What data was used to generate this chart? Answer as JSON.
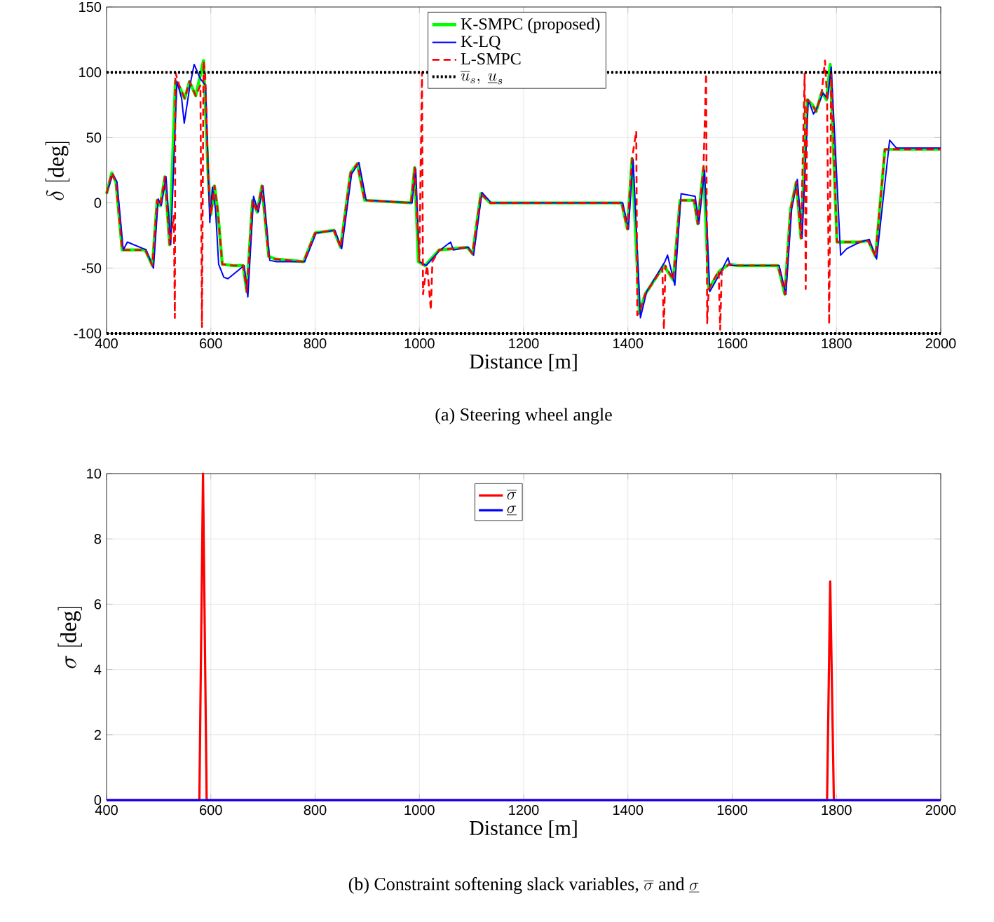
{
  "chart_data": [
    {
      "type": "line",
      "ylabel": "\\delta\\ [\\mathrm{deg}]",
      "xlabel": "Distance [m]",
      "xlim": [
        400,
        2000
      ],
      "xticks": [
        400,
        600,
        800,
        1000,
        1200,
        1400,
        1600,
        1800,
        2000
      ],
      "ylim": [
        -100,
        150
      ],
      "yticks": [
        -100,
        -50,
        0,
        50,
        100,
        150
      ],
      "grid": true,
      "legend": "top",
      "marker": "none",
      "series": [
        {
          "name": "K-SMPC (proposed)",
          "color": "#00ff00",
          "line_style": "solid",
          "x": [
            400,
            410,
            418,
            430,
            438,
            474,
            488,
            497,
            503,
            512,
            521,
            532,
            541,
            550,
            559,
            571,
            586,
            595,
            600,
            607,
            613,
            622,
            644,
            662,
            669,
            680,
            689,
            698,
            711,
            724,
            778,
            800,
            836,
            849,
            868,
            881,
            895,
            984,
            991,
            998,
            1011,
            1038,
            1092,
            1102,
            1118,
            1136,
            1388,
            1399,
            1408,
            1422,
            1433,
            1469,
            1487,
            1500,
            1527,
            1534,
            1545,
            1555,
            1576,
            1594,
            1612,
            1688,
            1701,
            1712,
            1723,
            1732,
            1744,
            1754,
            1761,
            1772,
            1781,
            1788,
            1801,
            1843,
            1861,
            1875,
            1893,
            2000
          ],
          "values": [
            7,
            23,
            16,
            -36,
            -36,
            -36,
            -48,
            2,
            -2,
            20,
            -32,
            93,
            88,
            80,
            93,
            82,
            109,
            20,
            -9,
            13,
            -5,
            -47,
            -48,
            -48,
            -68,
            2,
            -7,
            13,
            -41,
            -43,
            -45,
            -23,
            -21,
            -34,
            23,
            30,
            2,
            0,
            27,
            -45,
            -48,
            -36,
            -34,
            -39,
            7,
            0,
            0,
            -20,
            34,
            -84,
            -70,
            -48,
            -59,
            2,
            2,
            -16,
            27,
            -66,
            -52,
            -47,
            -48,
            -48,
            -70,
            -5,
            16,
            -27,
            79,
            75,
            70,
            85,
            79,
            106,
            -30,
            -30,
            -29,
            -41,
            41,
            41
          ]
        },
        {
          "name": "K-LQ",
          "color": "#0000ff",
          "line_style": "solid",
          "x": [
            400,
            412,
            420,
            432,
            440,
            476,
            490,
            499,
            505,
            514,
            523,
            535,
            544,
            549,
            560,
            568,
            580,
            590,
            598,
            603,
            609,
            615,
            625,
            633,
            664,
            671,
            682,
            691,
            700,
            713,
            726,
            780,
            802,
            838,
            851,
            870,
            884,
            898,
            986,
            993,
            1000,
            1013,
            1040,
            1060,
            1065,
            1094,
            1104,
            1120,
            1138,
            1390,
            1401,
            1410,
            1424,
            1436,
            1471,
            1476,
            1490,
            1502,
            1529,
            1536,
            1547,
            1557,
            1578,
            1592,
            1596,
            1614,
            1690,
            1703,
            1714,
            1725,
            1734,
            1746,
            1756,
            1763,
            1774,
            1783,
            1790,
            1808,
            1820,
            1845,
            1863,
            1877,
            1902,
            1915,
            2000
          ],
          "values": [
            7,
            22,
            16,
            -36,
            -30,
            -36,
            -50,
            3,
            -2,
            20,
            -32,
            93,
            80,
            61,
            90,
            106,
            95,
            90,
            -15,
            12,
            -5,
            -47,
            -57,
            -58,
            -48,
            -72,
            5,
            -7,
            13,
            -44,
            -45,
            -45,
            -23,
            -21,
            -35,
            22,
            31,
            2,
            0,
            26,
            -45,
            -48,
            -36,
            -30,
            -36,
            -34,
            -40,
            8,
            0,
            0,
            -20,
            33,
            -88,
            -68,
            -45,
            -40,
            -63,
            7,
            5,
            -16,
            25,
            -68,
            -53,
            -42,
            -48,
            -48,
            -48,
            -70,
            -5,
            18,
            -27,
            79,
            68,
            73,
            84,
            80,
            104,
            -40,
            -35,
            -30,
            -28,
            -43,
            48,
            42,
            42
          ]
        },
        {
          "name": "L-SMPC",
          "color": "#ff0000",
          "line_style": "dashed",
          "x": [
            400,
            410,
            418,
            430,
            438,
            474,
            488,
            497,
            503,
            512,
            521,
            529,
            531,
            532,
            541,
            550,
            559,
            571,
            580,
            583,
            586,
            589,
            595,
            600,
            607,
            613,
            622,
            644,
            662,
            669,
            680,
            689,
            698,
            711,
            724,
            778,
            800,
            836,
            849,
            868,
            881,
            895,
            984,
            991,
            1000,
            1005,
            1007,
            1010,
            1015,
            1022,
            1025,
            1038,
            1092,
            1102,
            1118,
            1136,
            1388,
            1399,
            1408,
            1416,
            1418,
            1422,
            1433,
            1466,
            1469,
            1472,
            1487,
            1500,
            1527,
            1534,
            1545,
            1550,
            1552,
            1555,
            1574,
            1577,
            1580,
            1594,
            1612,
            1688,
            1701,
            1712,
            1723,
            1732,
            1739,
            1741,
            1744,
            1754,
            1761,
            1772,
            1778,
            1782,
            1786,
            1790,
            1801,
            1843,
            1861,
            1875,
            1893,
            2000
          ],
          "values": [
            7,
            23,
            16,
            -36,
            -36,
            -36,
            -48,
            2,
            -2,
            20,
            -32,
            -10,
            -88,
            100,
            88,
            80,
            93,
            82,
            90,
            -95,
            109,
            100,
            20,
            -9,
            13,
            -5,
            -47,
            -48,
            -48,
            -68,
            2,
            -7,
            13,
            -41,
            -43,
            -45,
            -23,
            -21,
            -34,
            23,
            30,
            2,
            0,
            27,
            -45,
            100,
            -70,
            -60,
            -48,
            -82,
            -45,
            -36,
            -34,
            -39,
            7,
            0,
            0,
            -20,
            34,
            55,
            -86,
            -84,
            -70,
            -50,
            -97,
            -48,
            -59,
            2,
            2,
            -16,
            27,
            99,
            -92,
            -66,
            -52,
            -97,
            -52,
            -47,
            -48,
            -48,
            -70,
            -5,
            16,
            -27,
            99,
            -66,
            79,
            75,
            70,
            85,
            109,
            80,
            -93,
            100,
            -30,
            -30,
            -29,
            -41,
            41,
            41
          ]
        }
      ],
      "ref_lines": [
        {
          "axis": "y",
          "value": 100,
          "label": "\\overline{u}_s,\\ \\underline{u}_s",
          "color": "#000000",
          "line_style": "dotted"
        },
        {
          "axis": "y",
          "value": -100,
          "color": "#000000",
          "line_style": "dotted"
        }
      ],
      "annotations": [
        "(a) Steering wheel angle"
      ]
    },
    {
      "type": "line",
      "ylabel": "\\sigma\\ [\\mathrm{deg}]",
      "xlabel": "Distance [m]",
      "xlim": [
        400,
        2000
      ],
      "xticks": [
        400,
        600,
        800,
        1000,
        1200,
        1400,
        1600,
        1800,
        2000
      ],
      "ylim": [
        0,
        10
      ],
      "yticks": [
        0,
        2,
        4,
        6,
        8,
        10
      ],
      "grid": true,
      "legend": "top",
      "marker": "none",
      "series": [
        {
          "name": "\\overline{\\sigma}",
          "color": "#ff0000",
          "line_style": "solid",
          "x": [
            400,
            578,
            585,
            592,
            1782,
            1788,
            1795,
            2000
          ],
          "values": [
            0,
            0,
            10,
            0,
            0,
            6.7,
            0,
            0
          ]
        },
        {
          "name": "\\underline{\\sigma}",
          "color": "#0000ff",
          "line_style": "solid",
          "x": [
            400,
            2000
          ],
          "values": [
            0,
            0
          ]
        }
      ],
      "annotations": [
        "\\mbox{(b) Constraint softening slack variables, }\\overline{\\sigma}\\mbox{ and }\\underline{\\sigma}"
      ]
    }
  ]
}
